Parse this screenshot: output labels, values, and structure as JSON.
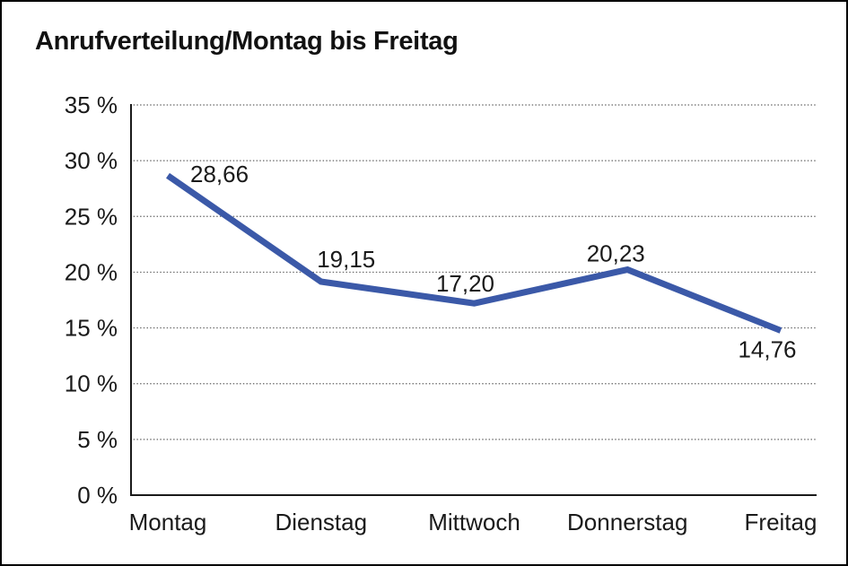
{
  "page": {
    "title": "Anrufverteilung/Montag bis Freitag"
  },
  "chart_data": {
    "type": "line",
    "title": "Anrufverteilung/Montag bis Freitag",
    "categories": [
      "Montag",
      "Dienstag",
      "Mittwoch",
      "Donnerstag",
      "Freitag"
    ],
    "values": [
      28.66,
      19.15,
      17.2,
      20.23,
      14.76
    ],
    "data_labels": [
      "28,66",
      "19,15",
      "17,20",
      "20,23",
      "14,76"
    ],
    "xlabel": "",
    "ylabel": "",
    "ylim": [
      0,
      35
    ],
    "y_tick_step": 5,
    "y_tick_labels": [
      "0 %",
      "5 %",
      "10 %",
      "15 %",
      "20 %",
      "25 %",
      "30 %",
      "35 %"
    ],
    "grid": "horizontal-dotted",
    "legend": "none",
    "line_color": "#3B59A8",
    "axis_color": "#1a1a1a",
    "grid_color": "#666666",
    "text_color": "#1a1a1a",
    "background_color": "#ffffff",
    "frame_border_color": "#000000"
  }
}
